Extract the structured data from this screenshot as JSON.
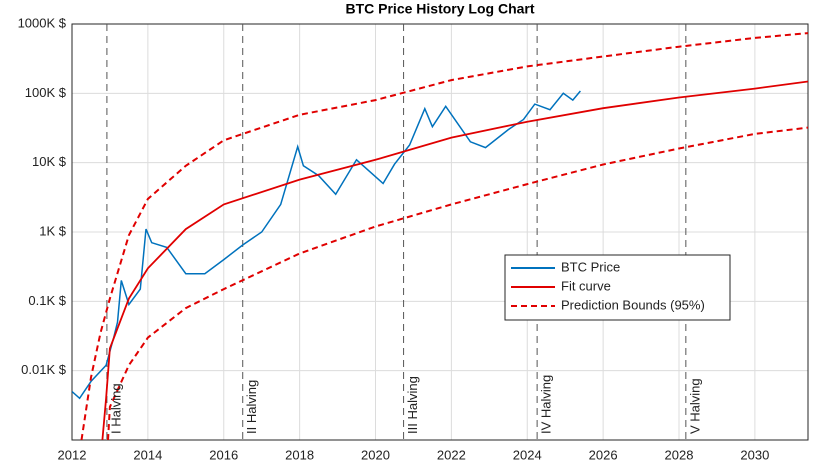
{
  "chart_data": {
    "type": "line",
    "title": "BTC Price History Log Chart",
    "log_y": true,
    "grid": true,
    "xlim": [
      2012,
      2031.4
    ],
    "xticks": [
      2012,
      2014,
      2016,
      2018,
      2020,
      2022,
      2024,
      2026,
      2028,
      2030
    ],
    "ylim": [
      1,
      1000000
    ],
    "yticks": [
      {
        "value": 10,
        "label": "0.01K $"
      },
      {
        "value": 100,
        "label": "0.1K $"
      },
      {
        "value": 1000,
        "label": "1K $"
      },
      {
        "value": 10000,
        "label": "10K $"
      },
      {
        "value": 100000,
        "label": "100K $"
      },
      {
        "value": 1000000,
        "label": "1000K $"
      }
    ],
    "legend": "center-right",
    "series": [
      {
        "name": "BTC Price",
        "color": "#0072bd",
        "dash": false,
        "x": [
          2012.0,
          2012.2,
          2012.5,
          2012.9,
          2013.1,
          2013.2,
          2013.3,
          2013.5,
          2013.8,
          2013.95,
          2014.1,
          2014.5,
          2015.0,
          2015.5,
          2016.0,
          2016.5,
          2017.0,
          2017.5,
          2017.95,
          2018.1,
          2018.5,
          2018.95,
          2019.5,
          2020.2,
          2020.5,
          2020.9,
          2021.3,
          2021.5,
          2021.85,
          2022.5,
          2022.9,
          2023.5,
          2023.9,
          2024.2,
          2024.6,
          2024.95,
          2025.2,
          2025.4
        ],
        "values": [
          5,
          4,
          7,
          12,
          30,
          50,
          200,
          90,
          150,
          1100,
          700,
          600,
          250,
          250,
          400,
          650,
          1000,
          2500,
          17000,
          9000,
          6500,
          3500,
          11000,
          5000,
          9500,
          18000,
          60000,
          33000,
          65000,
          20000,
          16500,
          30000,
          42000,
          70000,
          58000,
          100000,
          80000,
          108000
        ]
      },
      {
        "name": "Fit curve",
        "color": "#e00000",
        "dash": false,
        "x": [
          2012.8,
          2012.9,
          2013,
          2013.5,
          2014,
          2015,
          2016,
          2018,
          2020,
          2022,
          2024,
          2026,
          2028,
          2030,
          2031.4
        ],
        "values": [
          1,
          4,
          21,
          110,
          300,
          1100,
          2500,
          5700,
          11000,
          23000,
          39000,
          61000,
          87000,
          117000,
          148000
        ]
      },
      {
        "name": "Prediction Bounds (95%)",
        "color": "#e00000",
        "dash": true,
        "x": [
          2012.25,
          2012.5,
          2012.75,
          2013,
          2013.5,
          2014,
          2015,
          2016,
          2018,
          2020,
          2022,
          2024,
          2026,
          2028,
          2030,
          2031.4
        ],
        "values": [
          1,
          8,
          35,
          110,
          900,
          3000,
          9000,
          21000,
          49000,
          80000,
          155000,
          245000,
          340000,
          470000,
          630000,
          740000
        ]
      },
      {
        "color": "#e00000",
        "dash": true,
        "x": [
          2012.95,
          2013,
          2013.5,
          2014,
          2015,
          2016,
          2018,
          2020,
          2022,
          2024,
          2026,
          2028,
          2030,
          2031.4
        ],
        "values": [
          1,
          3,
          12,
          30,
          80,
          150,
          490,
          1200,
          2500,
          4900,
          9400,
          16000,
          26000,
          32000
        ]
      }
    ],
    "annotations": [
      {
        "x": 2012.92,
        "label": "I Halving"
      },
      {
        "x": 2016.5,
        "label": "II Halving"
      },
      {
        "x": 2020.74,
        "label": "III Halving"
      },
      {
        "x": 2024.26,
        "label": "IV Halving"
      },
      {
        "x": 2028.18,
        "label": "V Halving"
      }
    ]
  }
}
